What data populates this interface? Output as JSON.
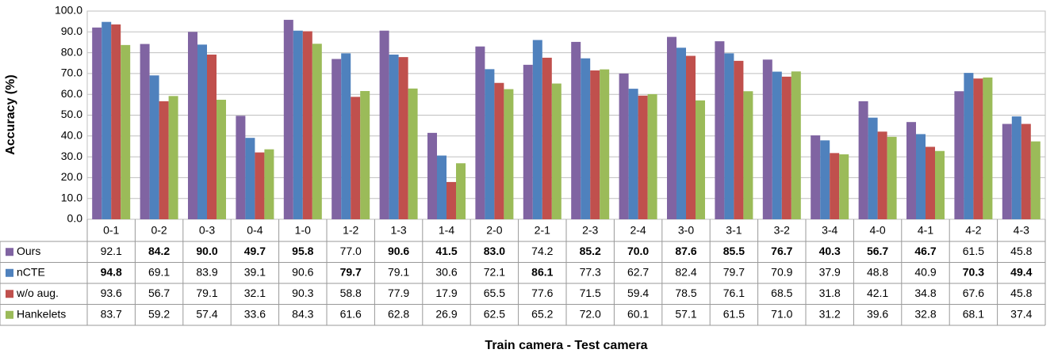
{
  "chart_data": {
    "type": "bar",
    "y_label": "Accuracy (%)",
    "x_label": "Train camera - Test camera",
    "categories": [
      "0-1",
      "0-2",
      "0-3",
      "0-4",
      "1-0",
      "1-2",
      "1-3",
      "1-4",
      "2-0",
      "2-1",
      "2-3",
      "2-4",
      "3-0",
      "3-1",
      "3-2",
      "3-4",
      "4-0",
      "4-1",
      "4-2",
      "4-3"
    ],
    "series": [
      {
        "name": "Ours",
        "color": "#8064a2",
        "values": [
          92.1,
          84.2,
          90.0,
          49.7,
          95.8,
          77.0,
          90.6,
          41.5,
          83.0,
          74.2,
          85.2,
          70.0,
          87.6,
          85.5,
          76.7,
          40.3,
          56.7,
          46.7,
          61.5,
          45.8
        ],
        "value_labels": [
          "92.1",
          "84.2",
          "90.0",
          "49.7",
          "95.8",
          "77.0",
          "90.6",
          "41.5",
          "83.0",
          "74.2",
          "85.2",
          "70.0",
          "87.6",
          "85.5",
          "76.7",
          "40.3",
          "56.7",
          "46.7",
          "61.5",
          "45.8"
        ]
      },
      {
        "name": "nCTE",
        "color": "#4f81bd",
        "values": [
          94.8,
          69.1,
          83.9,
          39.1,
          90.6,
          79.7,
          79.1,
          30.6,
          72.1,
          86.1,
          77.3,
          62.7,
          82.4,
          79.7,
          70.9,
          37.9,
          48.8,
          40.9,
          70.3,
          49.4
        ],
        "value_labels": [
          "94.8",
          "69.1",
          "83.9",
          "39.1",
          "90.6",
          "79.7",
          "79.1",
          "30.6",
          "72.1",
          "86.1",
          "77.3",
          "62.7",
          "82.4",
          "79.7",
          "70.9",
          "37.9",
          "48.8",
          "40.9",
          "70.3",
          "49.4"
        ]
      },
      {
        "name": "w/o aug.",
        "color": "#c0504d",
        "values": [
          93.6,
          56.7,
          79.1,
          32.1,
          90.3,
          58.8,
          77.9,
          17.9,
          65.5,
          77.6,
          71.5,
          59.4,
          78.5,
          76.1,
          68.5,
          31.8,
          42.1,
          34.8,
          67.6,
          45.8
        ],
        "value_labels": [
          "93.6",
          "56.7",
          "79.1",
          "32.1",
          "90.3",
          "58.8",
          "77.9",
          "17.9",
          "65.5",
          "77.6",
          "71.5",
          "59.4",
          "78.5",
          "76.1",
          "68.5",
          "31.8",
          "42.1",
          "34.8",
          "67.6",
          "45.8"
        ]
      },
      {
        "name": "Hankelets",
        "color": "#9bbb59",
        "values": [
          83.7,
          59.2,
          57.4,
          33.6,
          84.3,
          61.6,
          62.8,
          26.9,
          62.5,
          65.2,
          72.0,
          60.1,
          57.1,
          61.5,
          71.0,
          31.2,
          39.6,
          32.8,
          68.1,
          37.4
        ],
        "value_labels": [
          "83.7",
          "59.2",
          "57.4",
          "33.6",
          "84.3",
          "61.6",
          "62.8",
          "26.9",
          "62.5",
          "65.2",
          "72.0",
          "60.1",
          "57.1",
          "61.5",
          "71.0",
          "31.2",
          "39.6",
          "32.8",
          "68.1",
          "37.4"
        ]
      }
    ],
    "ylim": [
      0,
      100
    ],
    "yticks": [
      {
        "value": 0,
        "label": "0.0"
      },
      {
        "value": 10,
        "label": "10.0"
      },
      {
        "value": 20,
        "label": "20.0"
      },
      {
        "value": 30,
        "label": "30.0"
      },
      {
        "value": 40,
        "label": "40.0"
      },
      {
        "value": 50,
        "label": "50.0"
      },
      {
        "value": 60,
        "label": "60.0"
      },
      {
        "value": 70,
        "label": "70.0"
      },
      {
        "value": 80,
        "label": "80.0"
      },
      {
        "value": 90,
        "label": "90.0"
      },
      {
        "value": 100,
        "label": "100.0"
      }
    ],
    "grid": true
  }
}
